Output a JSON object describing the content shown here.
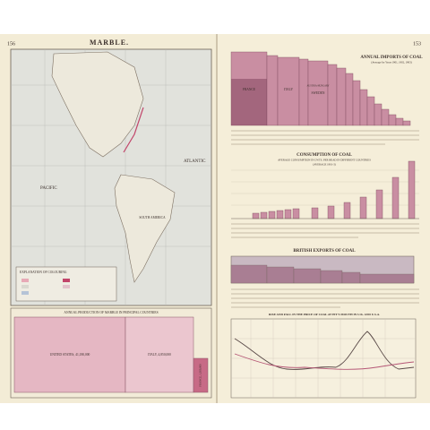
{
  "left_page": {
    "page_number": "156",
    "title": "MARBLE.",
    "map": {
      "labels": [
        "PACIFIC",
        "SOUTH AMERICA",
        "ATLANTIC"
      ],
      "legend": {
        "title": "EXPLANATION OF COLOURING"
      }
    },
    "marble_chart": {
      "title": "ANNUAL PRODUCTION OF MARBLE IN PRINCIPAL COUNTRIES",
      "labels": [
        "UNITED STATES, 41,180,000",
        "ITALY, 4,850,000",
        "FRANCE, 1,050,000"
      ]
    }
  },
  "right_page": {
    "page_number": "153",
    "imports": {
      "title": "ANNUAL IMPORTS OF COAL",
      "subtitle": "(Average for Years 1901, 1902, 1903)",
      "labels": [
        "FRANCE",
        "ITALY",
        "AUSTRIA-HUNGARY",
        "SWEDEN"
      ]
    },
    "consumption": {
      "title": "CONSUMPTION OF COAL",
      "subtitle": "AVERAGE CONSUMPTION IN CWTS. PER HEAD IN DIFFERENT COUNTRIES",
      "note": "(AVERAGE 1901-3)"
    },
    "exports": {
      "title": "BRITISH EXPORTS OF COAL"
    },
    "price": {
      "title": "RISE AND FALL IN THE PRICE OF COAL AT PIT'S MOUTH IN U.K. AND U.S.A."
    }
  }
}
